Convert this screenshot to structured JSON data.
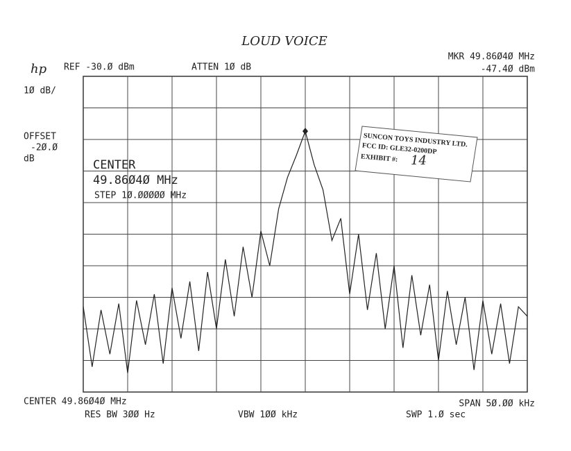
{
  "chart_data": {
    "type": "line",
    "title": "LOUD VOICE",
    "annotations": [
      "hp",
      "REF -30.Ø dBm",
      "ATTEN 1Ø dB",
      "MKR 49.86Ø4Ø MHz",
      "-47.4Ø dBm",
      "1Ø dB/",
      "OFFSET",
      "-2Ø.Ø",
      "dB",
      "CENTER",
      "49.86Ø4Ø MHz",
      "STEP 1Ø.ØØØØØ MHz",
      "CENTER 49.86Ø4Ø MHz",
      "SPAN 5Ø.ØØ kHz",
      "RES BW 3ØØ Hz",
      "VBW 1ØØ kHz",
      "SWP 1.Ø sec",
      "SUNCON TOYS INDUSTRY LTD.",
      "FCC ID:  GLE32-0200DP",
      "EXHIBIT #:",
      "14"
    ],
    "x": [
      49.8354,
      49.8364,
      49.8374,
      49.8384,
      49.8394,
      49.8404,
      49.8414,
      49.8424,
      49.8434,
      49.8444,
      49.8454,
      49.8464,
      49.8474,
      49.8484,
      49.8494,
      49.8504,
      49.8514,
      49.8524,
      49.8534,
      49.8544,
      49.8554,
      49.8564,
      49.8574,
      49.8584,
      49.8594,
      49.8604,
      49.8614,
      49.8624,
      49.8634,
      49.8644,
      49.8654,
      49.8664,
      49.8674,
      49.8684,
      49.8694,
      49.8704,
      49.8714,
      49.8724,
      49.8734,
      49.8744,
      49.8754,
      49.8764,
      49.8774,
      49.8784,
      49.8794,
      49.8804,
      49.8814,
      49.8824,
      49.8834,
      49.8844,
      49.8854
    ],
    "series": [
      {
        "color": "#222222",
        "values": [
          -103,
          -122,
          -104,
          -118,
          -102,
          -124,
          -101,
          -115,
          -99,
          -121,
          -97,
          -113,
          -95,
          -117,
          -92,
          -110,
          -88,
          -106,
          -84,
          -100,
          -79,
          -90,
          -72,
          -62,
          -55,
          -47.4,
          -58,
          -66,
          -82,
          -75,
          -99,
          -80,
          -104,
          -86,
          -110,
          -90,
          -116,
          -93,
          -112,
          -96,
          -120,
          -98,
          -115,
          -100,
          -123,
          -101,
          -118,
          -102,
          -121,
          -103,
          -106
        ]
      }
    ],
    "xlim": [
      49.8354,
      49.8854
    ],
    "ylim": [
      -130,
      -30
    ],
    "grid": true
  }
}
